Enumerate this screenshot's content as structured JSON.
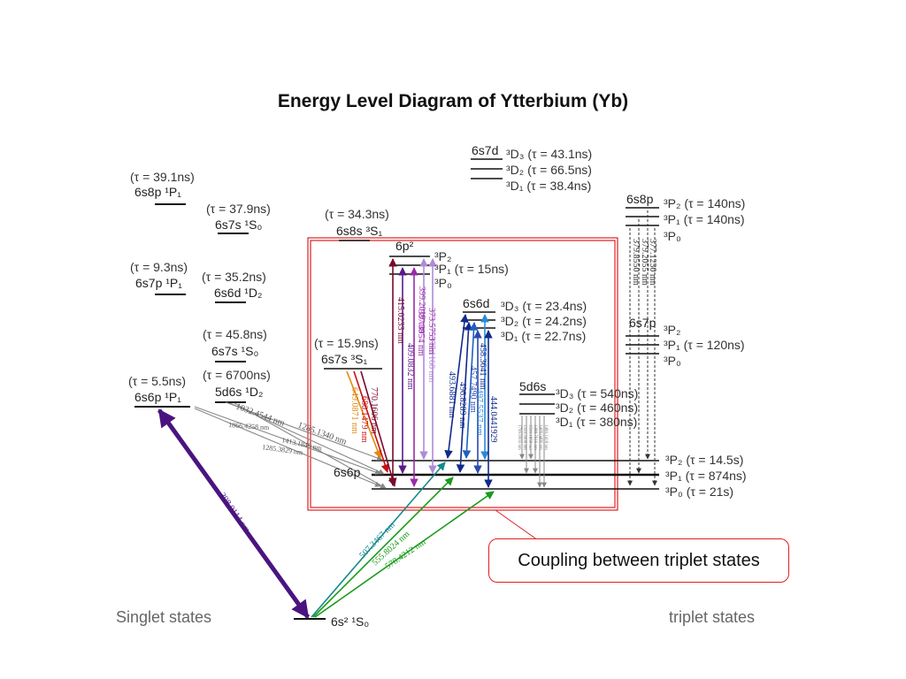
{
  "title": "Energy Level Diagram of Ytterbium (Yb)",
  "sections": {
    "singlet": "Singlet states",
    "triplet": "triplet states"
  },
  "callout": "Coupling between triplet states",
  "levels": {
    "s8p_tau": "(τ = 39.1ns)",
    "s8p_label": "6s8p ¹P₁",
    "s7s1s0_tau": "(τ = 37.9ns)",
    "s7s1s0_label": "6s7s ¹S₀",
    "s8s_tau": "(τ = 34.3ns)",
    "s8s_label": "6s8s ³S₁",
    "s7p_tau": "(τ = 9.3ns)",
    "s7p_label": "6s7p ¹P₁",
    "s6d1_tau": "(τ = 35.2ns)",
    "s6d1_label": "6s6d ¹D₂",
    "s7s1s0b_tau": "(τ = 45.8ns)",
    "s7s1s0b_label": "6s7s ¹S₀",
    "d6s_tau": "(τ = 6700ns)",
    "d6s_label": "5d6s ¹D₂",
    "s6p1_tau": "(τ = 5.5ns)",
    "s6p1_label": "6s6p ¹P₁",
    "s7s3_tau": "(τ = 15.9ns)",
    "s7s3_label": "6s7s ³S₁",
    "s6p3p_cfg": "6p²",
    "s6p3p_p2": "³P₂",
    "s6p3p_p1": "³P₁ (τ = 15ns)",
    "s6p3p_p0": "³P₀",
    "s7d_cfg": "6s7d",
    "s7d_d3": "³D₃ (τ = 43.1ns)",
    "s7d_d2": "³D₂ (τ = 66.5ns)",
    "s7d_d1": "³D₁ (τ = 38.4ns)",
    "s6d3_cfg": "6s6d",
    "s6d3_d3": "³D₃ (τ = 23.4ns)",
    "s6d3_d2": "³D₂ (τ = 24.2ns)",
    "s6d3_d1": "³D₁ (τ = 22.7ns)",
    "d6s3_cfg": "5d6s",
    "d6s3_d3": "³D₃ (τ = 540ns)",
    "d6s3_d2": "³D₂ (τ = 460ns)",
    "d6s3_d1": "³D₁ (τ = 380ns)",
    "s8p3_cfg": "6s8p",
    "s8p3_p2": "³P₂ (τ = 140ns)",
    "s8p3_p1": "³P₁ (τ = 140ns)",
    "s8p3_p0": "³P₀",
    "s7p3_cfg": "6s7p",
    "s7p3_p2": "³P₂",
    "s7p3_p1": "³P₁ (τ = 120ns)",
    "s7p3_p0": "³P₀",
    "s6p3_cfg": "6s6p",
    "s6p3_p2": "³P₂ (τ = 14.5s)",
    "s6p3_p1": "³P₁ (τ = 874ns)",
    "s6p3_p0": "³P₀ (τ = 21s)",
    "ground": "6s² ¹S₀"
  },
  "transitions": {
    "t398": "398.9114 nm",
    "t507": "507.3467 nm",
    "t555": "555.8024 nm",
    "t578": "578.4212 nm",
    "t1032": "1032.4544 nm",
    "t1866": "1866.4258 nm",
    "t1285a": "1285.1340 nm",
    "t1413": "1413.1849 nm",
    "t1285b": "1285.3829 nm",
    "t770": "770.1606 nm",
    "t680": "680.1479 nm",
    "t649": "649.0871 nm",
    "t415": "415.0233 nm",
    "t409": "409.0832 nm",
    "t387": "387.3954 nm",
    "t399": "399.2019 nm",
    "t377": "377.1168 nm",
    "t373": "373.5753 nm",
    "t493": "493.6881 nm",
    "t496": "496.8289 nm",
    "t457": "457.7490 nm",
    "t458": "458.3641 nm",
    "t497": "497.5537 nm",
    "t444": "444.0441929",
    "t377b": "377.1230 nm",
    "t379a": "379.2055 nm",
    "t379b": "379.8550 nm",
    "d1": "1799.9003 nm",
    "d2": "1350.3006 nm",
    "d3": "1539.1858 nm",
    "d4": "1388.7616 nm",
    "d5": "1409.0480 nm",
    "d6": "1480.1418 nm"
  },
  "colors": {
    "highlight": "#e02020",
    "purple": "#5a1a8c",
    "teal": "#158a8a",
    "green": "#1a9a1a",
    "navy": "#102a8a",
    "maroon": "#7a0a2a",
    "orange": "#e08a10",
    "red": "#c81010",
    "violet": "#9a2aa8",
    "lilac": "#b08ad8",
    "gray": "#888888"
  }
}
